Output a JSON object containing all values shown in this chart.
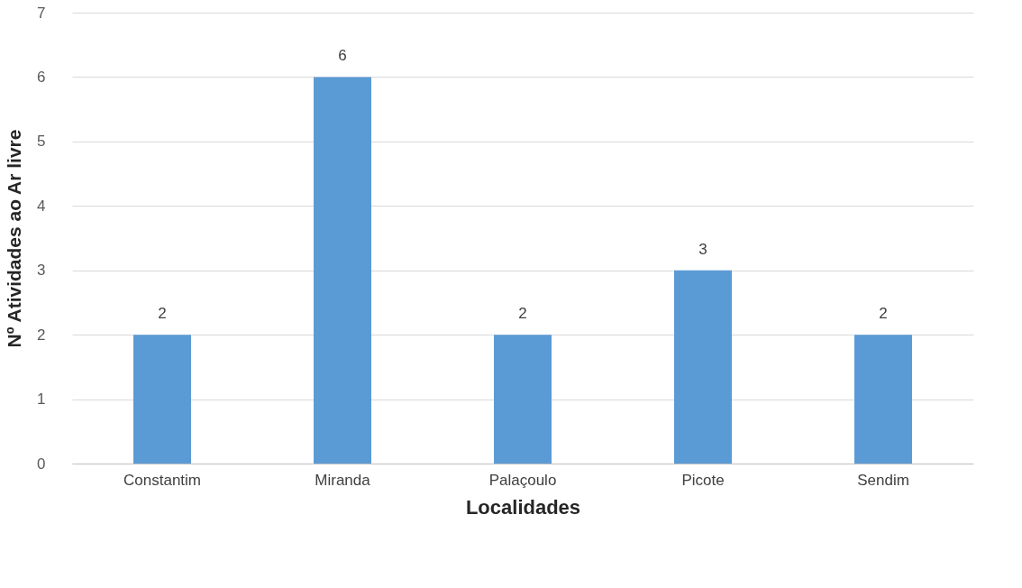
{
  "chart_data": {
    "type": "bar",
    "xlabel": "Localidades",
    "ylabel": "Nº Atividades ao Ar livre",
    "categories": [
      "Constantim",
      "Miranda",
      "Palaçoulo",
      "Picote",
      "Sendim"
    ],
    "values": [
      2,
      6,
      2,
      3,
      2
    ],
    "color": "#5b9bd5",
    "ylim": [
      0,
      7
    ],
    "yticks": [
      0,
      1,
      2,
      3,
      4,
      5,
      6,
      7
    ],
    "grid": "y",
    "data_labels": true
  }
}
